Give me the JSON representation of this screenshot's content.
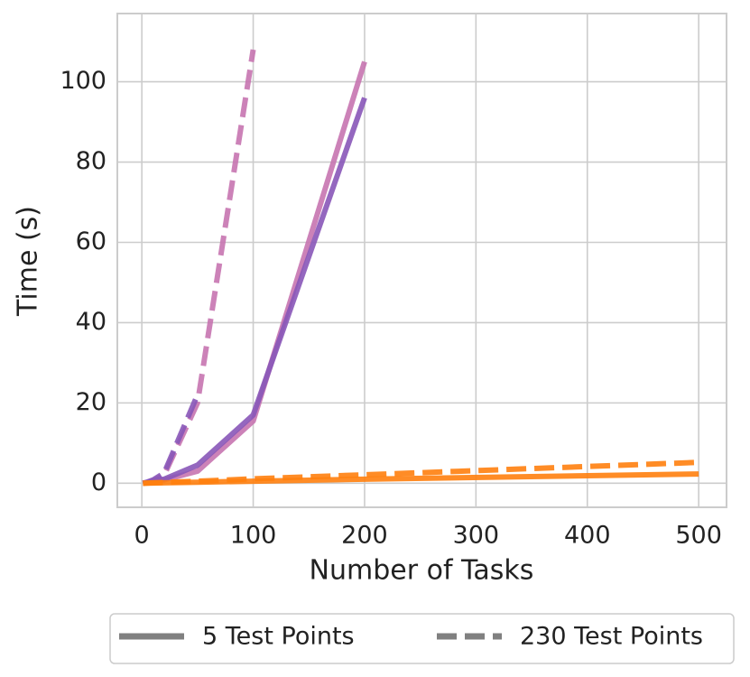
{
  "chart_data": {
    "type": "line",
    "xlabel": "Number of Tasks",
    "ylabel": "Time (s)",
    "xlim": [
      -22,
      525
    ],
    "ylim": [
      -6,
      117
    ],
    "xticks": [
      0,
      100,
      200,
      300,
      400,
      500
    ],
    "yticks": [
      0,
      20,
      40,
      60,
      80,
      100
    ],
    "grid": true,
    "series": [
      {
        "color": "#c774b0",
        "dashed": true,
        "x": [
          1,
          5,
          10,
          20,
          50,
          100
        ],
        "values": [
          0,
          0.2,
          0.6,
          2,
          20,
          108
        ]
      },
      {
        "color": "#8856b8",
        "dashed": true,
        "x": [
          1,
          5,
          10,
          20,
          50
        ],
        "values": [
          0,
          0.3,
          0.8,
          2.5,
          22
        ]
      },
      {
        "color": "#c774b0",
        "dashed": false,
        "x": [
          1,
          5,
          10,
          20,
          50,
          100,
          200
        ],
        "values": [
          0,
          0.1,
          0.3,
          0.8,
          3,
          15.5,
          105
        ]
      },
      {
        "color": "#8856b8",
        "dashed": false,
        "x": [
          1,
          5,
          10,
          20,
          50,
          100,
          200
        ],
        "values": [
          0,
          0.2,
          0.5,
          1,
          4.5,
          17,
          96
        ]
      },
      {
        "color": "#ff7f0e",
        "dashed": true,
        "x": [
          1,
          5,
          10,
          20,
          50,
          100,
          200,
          500
        ],
        "values": [
          0,
          0.05,
          0.1,
          0.2,
          0.5,
          1.1,
          2.1,
          5.2
        ]
      },
      {
        "color": "#ff7f0e",
        "dashed": false,
        "x": [
          1,
          5,
          10,
          20,
          50,
          100,
          200,
          500
        ],
        "values": [
          0,
          0.02,
          0.05,
          0.1,
          0.25,
          0.5,
          1,
          2.3
        ]
      }
    ],
    "legend": [
      {
        "label": "5 Test Points",
        "dashed": false,
        "color": "#808080"
      },
      {
        "label": "230 Test Points",
        "dashed": true,
        "color": "#808080"
      }
    ]
  }
}
